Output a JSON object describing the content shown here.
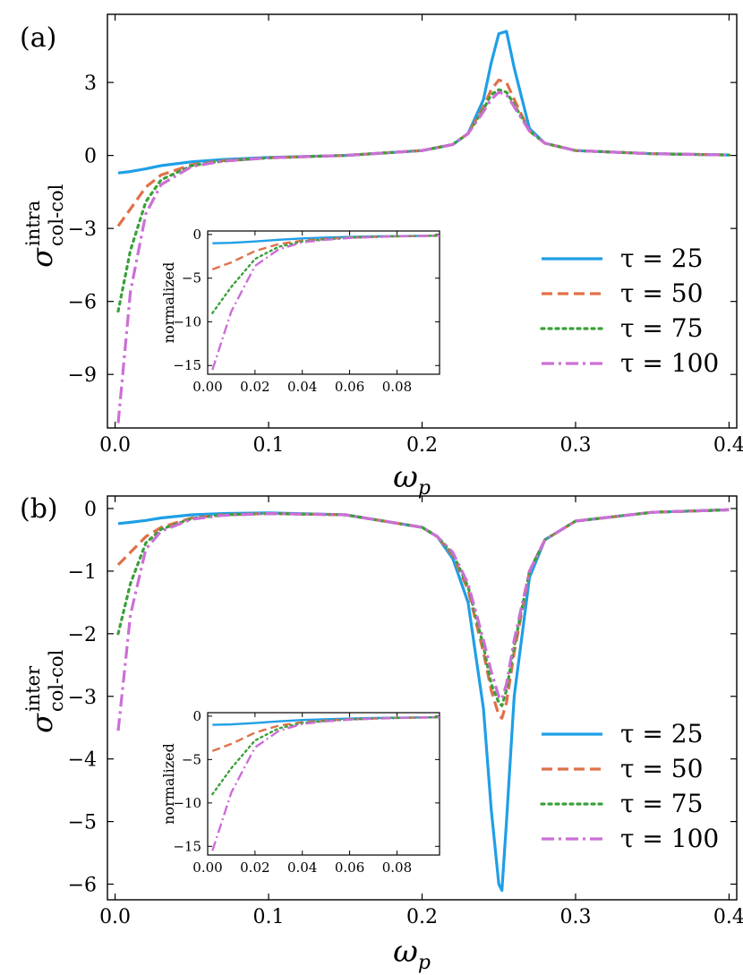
{
  "chart_data": [
    {
      "panel_label": "(a)",
      "type": "line",
      "xlabel": "ω",
      "xlabel_sub": "p",
      "ylabel": "σ",
      "ylabel_sup": "intra",
      "ylabel_sub": "col-col",
      "xlim": [
        -0.005,
        0.405
      ],
      "ylim": [
        -11.2,
        5.8
      ],
      "xticks": [
        0.0,
        0.1,
        0.2,
        0.3,
        0.4
      ],
      "xtick_labels": [
        "0.0",
        "0.1",
        "0.2",
        "0.3",
        "0.4"
      ],
      "yticks": [
        -9,
        -6,
        -3,
        0,
        3
      ],
      "ytick_labels": [
        "−9",
        "−6",
        "−3",
        "0",
        "3"
      ],
      "legend_position": "lower-right",
      "series": [
        {
          "name": "τ = 25",
          "color": "#1f9fe6",
          "style": "solid",
          "x": [
            0.002,
            0.01,
            0.02,
            0.03,
            0.05,
            0.07,
            0.1,
            0.15,
            0.2,
            0.22,
            0.23,
            0.24,
            0.245,
            0.25,
            0.255,
            0.26,
            0.27,
            0.28,
            0.3,
            0.35,
            0.4
          ],
          "y": [
            -0.72,
            -0.66,
            -0.55,
            -0.42,
            -0.26,
            -0.17,
            -0.08,
            0.0,
            0.2,
            0.45,
            0.9,
            2.3,
            3.8,
            5.0,
            5.1,
            3.6,
            1.1,
            0.5,
            0.2,
            0.07,
            0.02
          ]
        },
        {
          "name": "τ = 50",
          "color": "#e0704a",
          "style": "dashed",
          "x": [
            0.002,
            0.01,
            0.02,
            0.03,
            0.05,
            0.07,
            0.1,
            0.15,
            0.2,
            0.22,
            0.23,
            0.24,
            0.245,
            0.25,
            0.255,
            0.26,
            0.27,
            0.28,
            0.3,
            0.35,
            0.4
          ],
          "y": [
            -2.9,
            -2.2,
            -1.3,
            -0.8,
            -0.38,
            -0.22,
            -0.1,
            0.0,
            0.2,
            0.45,
            0.9,
            2.0,
            2.7,
            3.1,
            3.0,
            2.3,
            1.0,
            0.5,
            0.2,
            0.07,
            0.02
          ]
        },
        {
          "name": "τ = 75",
          "color": "#3aa03a",
          "style": "dotted",
          "x": [
            0.002,
            0.01,
            0.02,
            0.03,
            0.05,
            0.07,
            0.1,
            0.15,
            0.2,
            0.22,
            0.23,
            0.24,
            0.245,
            0.25,
            0.255,
            0.26,
            0.27,
            0.28,
            0.3,
            0.35,
            0.4
          ],
          "y": [
            -6.4,
            -3.9,
            -1.9,
            -1.0,
            -0.42,
            -0.23,
            -0.1,
            0.0,
            0.2,
            0.45,
            0.9,
            1.9,
            2.5,
            2.7,
            2.6,
            2.1,
            1.0,
            0.5,
            0.2,
            0.07,
            0.02
          ]
        },
        {
          "name": "τ = 100",
          "color": "#cc6fd6",
          "style": "dashdot",
          "x": [
            0.002,
            0.01,
            0.02,
            0.03,
            0.05,
            0.07,
            0.1,
            0.15,
            0.2,
            0.22,
            0.23,
            0.24,
            0.245,
            0.25,
            0.255,
            0.26,
            0.27,
            0.28,
            0.3,
            0.35,
            0.4
          ],
          "y": [
            -11.0,
            -5.6,
            -2.4,
            -1.2,
            -0.45,
            -0.24,
            -0.1,
            0.0,
            0.2,
            0.45,
            0.9,
            1.8,
            2.3,
            2.6,
            2.5,
            2.0,
            1.0,
            0.5,
            0.2,
            0.07,
            0.02
          ]
        }
      ],
      "inset": {
        "ylabel": "normalized",
        "xlim": [
          0.0,
          0.098
        ],
        "ylim": [
          -16.0,
          0.4
        ],
        "xticks": [
          0.0,
          0.02,
          0.04,
          0.06,
          0.08
        ],
        "xtick_labels": [
          "0.00",
          "0.02",
          "0.04",
          "0.06",
          "0.08"
        ],
        "yticks": [
          0,
          -5,
          -10,
          -15
        ],
        "ytick_labels": [
          "0",
          "−5",
          "−10",
          "−15"
        ],
        "series": [
          {
            "name": "τ = 25",
            "x": [
              0.002,
              0.01,
              0.02,
              0.03,
              0.04,
              0.05,
              0.06,
              0.07,
              0.08,
              0.09,
              0.098
            ],
            "y": [
              -1.0,
              -0.95,
              -0.8,
              -0.6,
              -0.45,
              -0.35,
              -0.28,
              -0.22,
              -0.18,
              -0.15,
              -0.13
            ]
          },
          {
            "name": "τ = 50",
            "x": [
              0.002,
              0.01,
              0.02,
              0.03,
              0.04,
              0.05,
              0.06,
              0.07,
              0.08,
              0.09,
              0.098
            ],
            "y": [
              -4.0,
              -3.2,
              -1.9,
              -1.1,
              -0.7,
              -0.5,
              -0.35,
              -0.27,
              -0.2,
              -0.16,
              -0.14
            ]
          },
          {
            "name": "τ = 75",
            "x": [
              0.002,
              0.01,
              0.02,
              0.03,
              0.04,
              0.05,
              0.06,
              0.07,
              0.08,
              0.09,
              0.098
            ],
            "y": [
              -9.0,
              -6.0,
              -2.8,
              -1.4,
              -0.8,
              -0.55,
              -0.38,
              -0.28,
              -0.21,
              -0.17,
              -0.14
            ]
          },
          {
            "name": "τ = 100",
            "x": [
              0.002,
              0.01,
              0.02,
              0.03,
              0.04,
              0.05,
              0.06,
              0.07,
              0.08,
              0.09,
              0.098
            ],
            "y": [
              -15.5,
              -8.8,
              -3.6,
              -1.7,
              -0.9,
              -0.6,
              -0.4,
              -0.3,
              -0.22,
              -0.17,
              -0.14
            ]
          }
        ]
      }
    },
    {
      "panel_label": "(b)",
      "type": "line",
      "xlabel": "ω",
      "xlabel_sub": "p",
      "ylabel": "σ",
      "ylabel_sup": "inter",
      "ylabel_sub": "col-col",
      "xlim": [
        -0.005,
        0.405
      ],
      "ylim": [
        -6.25,
        0.2
      ],
      "xticks": [
        0.0,
        0.1,
        0.2,
        0.3,
        0.4
      ],
      "xtick_labels": [
        "0.0",
        "0.1",
        "0.2",
        "0.3",
        "0.4"
      ],
      "yticks": [
        -6,
        -5,
        -4,
        -3,
        -2,
        -1,
        0
      ],
      "ytick_labels": [
        "−6",
        "−5",
        "−4",
        "−3",
        "−2",
        "−1",
        "0"
      ],
      "legend_position": "lower-right",
      "series": [
        {
          "name": "τ = 25",
          "color": "#1f9fe6",
          "style": "solid",
          "x": [
            0.002,
            0.01,
            0.02,
            0.03,
            0.05,
            0.07,
            0.1,
            0.15,
            0.2,
            0.21,
            0.22,
            0.23,
            0.24,
            0.245,
            0.25,
            0.252,
            0.255,
            0.26,
            0.27,
            0.28,
            0.3,
            0.35,
            0.4
          ],
          "y": [
            -0.24,
            -0.22,
            -0.19,
            -0.15,
            -0.1,
            -0.08,
            -0.07,
            -0.1,
            -0.3,
            -0.45,
            -0.8,
            -1.5,
            -3.2,
            -4.8,
            -6.0,
            -6.1,
            -5.0,
            -3.0,
            -1.1,
            -0.5,
            -0.2,
            -0.06,
            -0.02
          ]
        },
        {
          "name": "τ = 50",
          "color": "#e0704a",
          "style": "dashed",
          "x": [
            0.002,
            0.01,
            0.02,
            0.03,
            0.05,
            0.07,
            0.1,
            0.15,
            0.2,
            0.21,
            0.22,
            0.23,
            0.24,
            0.245,
            0.25,
            0.252,
            0.255,
            0.26,
            0.27,
            0.28,
            0.3,
            0.35,
            0.4
          ],
          "y": [
            -0.9,
            -0.7,
            -0.45,
            -0.3,
            -0.15,
            -0.1,
            -0.08,
            -0.1,
            -0.3,
            -0.45,
            -0.75,
            -1.3,
            -2.3,
            -2.9,
            -3.3,
            -3.35,
            -3.1,
            -2.3,
            -1.0,
            -0.5,
            -0.2,
            -0.06,
            -0.02
          ]
        },
        {
          "name": "τ = 75",
          "color": "#3aa03a",
          "style": "dotted",
          "x": [
            0.002,
            0.01,
            0.02,
            0.03,
            0.05,
            0.07,
            0.1,
            0.15,
            0.2,
            0.21,
            0.22,
            0.23,
            0.24,
            0.245,
            0.25,
            0.252,
            0.255,
            0.26,
            0.27,
            0.28,
            0.3,
            0.35,
            0.4
          ],
          "y": [
            -2.0,
            -1.2,
            -0.55,
            -0.33,
            -0.16,
            -0.1,
            -0.08,
            -0.1,
            -0.3,
            -0.45,
            -0.72,
            -1.25,
            -2.2,
            -2.8,
            -3.1,
            -3.15,
            -2.9,
            -2.2,
            -1.0,
            -0.5,
            -0.2,
            -0.06,
            -0.02
          ]
        },
        {
          "name": "τ = 100",
          "color": "#cc6fd6",
          "style": "dashdot",
          "x": [
            0.002,
            0.01,
            0.02,
            0.03,
            0.05,
            0.07,
            0.1,
            0.15,
            0.2,
            0.21,
            0.22,
            0.23,
            0.24,
            0.245,
            0.25,
            0.252,
            0.255,
            0.26,
            0.27,
            0.28,
            0.3,
            0.35,
            0.4
          ],
          "y": [
            -3.55,
            -1.7,
            -0.65,
            -0.36,
            -0.17,
            -0.11,
            -0.08,
            -0.1,
            -0.3,
            -0.45,
            -0.7,
            -1.2,
            -2.1,
            -2.6,
            -3.0,
            -3.05,
            -2.8,
            -2.1,
            -1.0,
            -0.5,
            -0.2,
            -0.06,
            -0.02
          ]
        }
      ],
      "inset": {
        "ylabel": "normalized",
        "xlim": [
          0.0,
          0.098
        ],
        "ylim": [
          -16.0,
          0.4
        ],
        "xticks": [
          0.0,
          0.02,
          0.04,
          0.06,
          0.08
        ],
        "xtick_labels": [
          "0.00",
          "0.02",
          "0.04",
          "0.06",
          "0.08"
        ],
        "yticks": [
          0,
          -5,
          -10,
          -15
        ],
        "ytick_labels": [
          "0",
          "−5",
          "−10",
          "−15"
        ],
        "series": [
          {
            "name": "τ = 25",
            "x": [
              0.002,
              0.01,
              0.02,
              0.03,
              0.04,
              0.05,
              0.06,
              0.07,
              0.08,
              0.09,
              0.098
            ],
            "y": [
              -1.0,
              -0.95,
              -0.8,
              -0.6,
              -0.45,
              -0.35,
              -0.28,
              -0.22,
              -0.18,
              -0.15,
              -0.13
            ]
          },
          {
            "name": "τ = 50",
            "x": [
              0.002,
              0.01,
              0.02,
              0.03,
              0.04,
              0.05,
              0.06,
              0.07,
              0.08,
              0.09,
              0.098
            ],
            "y": [
              -4.0,
              -3.2,
              -1.9,
              -1.1,
              -0.7,
              -0.5,
              -0.35,
              -0.27,
              -0.2,
              -0.16,
              -0.14
            ]
          },
          {
            "name": "τ = 75",
            "x": [
              0.002,
              0.01,
              0.02,
              0.03,
              0.04,
              0.05,
              0.06,
              0.07,
              0.08,
              0.09,
              0.098
            ],
            "y": [
              -9.0,
              -6.0,
              -2.8,
              -1.4,
              -0.8,
              -0.55,
              -0.38,
              -0.28,
              -0.21,
              -0.17,
              -0.14
            ]
          },
          {
            "name": "τ = 100",
            "x": [
              0.002,
              0.01,
              0.02,
              0.03,
              0.04,
              0.05,
              0.06,
              0.07,
              0.08,
              0.09,
              0.098
            ],
            "y": [
              -15.5,
              -8.8,
              -3.6,
              -1.7,
              -0.9,
              -0.6,
              -0.4,
              -0.3,
              -0.22,
              -0.17,
              -0.14
            ]
          }
        ]
      }
    }
  ]
}
